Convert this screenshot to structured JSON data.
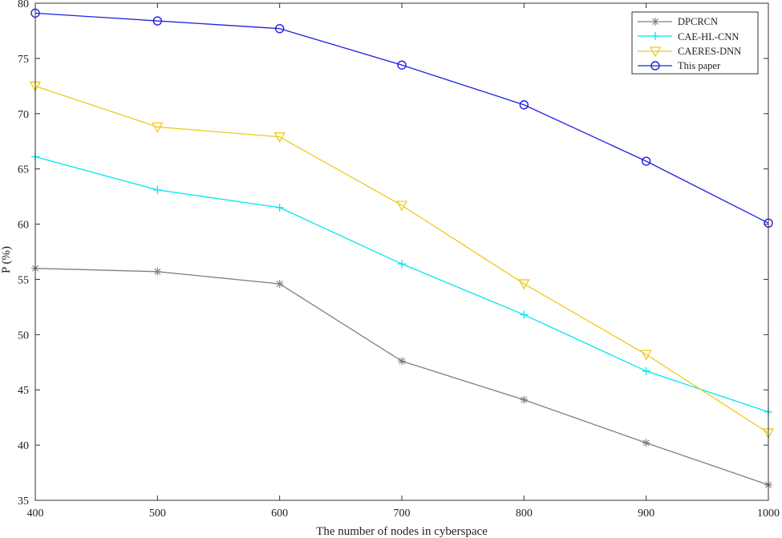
{
  "chart_data": {
    "type": "line",
    "xlabel": "The number of nodes in cyberspace",
    "ylabel": "P (%)",
    "x": [
      400,
      500,
      600,
      700,
      800,
      900,
      1000
    ],
    "xlim": [
      400,
      1000
    ],
    "ylim": [
      35,
      80
    ],
    "xticks": [
      400,
      500,
      600,
      700,
      800,
      900,
      1000
    ],
    "yticks": [
      35,
      40,
      45,
      50,
      55,
      60,
      65,
      70,
      75,
      80
    ],
    "grid": false,
    "legend_position": "top-right",
    "series": [
      {
        "name": "DPCRCN",
        "color": "#808080",
        "marker": "asterisk",
        "values": [
          56.0,
          55.7,
          54.6,
          47.6,
          44.1,
          40.2,
          36.4
        ]
      },
      {
        "name": "CAE-HL-CNN",
        "color": "#00e5ee",
        "marker": "plus",
        "values": [
          66.1,
          63.1,
          61.5,
          56.4,
          51.8,
          46.7,
          43.0
        ]
      },
      {
        "name": "CAERES-DNN",
        "color": "#eecb1a",
        "marker": "triangle-down",
        "values": [
          72.5,
          68.8,
          67.9,
          61.7,
          54.6,
          48.2,
          41.1
        ]
      },
      {
        "name": "This paper",
        "color": "#2020e0",
        "marker": "circle",
        "values": [
          79.1,
          78.4,
          77.7,
          74.4,
          70.8,
          65.7,
          60.1
        ]
      }
    ]
  }
}
